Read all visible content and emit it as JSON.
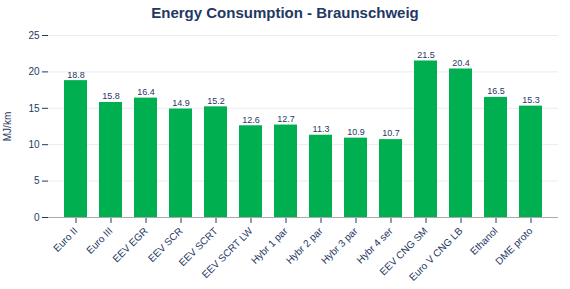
{
  "chart_data": {
    "type": "bar",
    "title": "Energy Consumption - Braunschweig",
    "ylabel": "MJ/km",
    "categories": [
      "Euro II",
      "Euro III",
      "EEV EGR",
      "EEV SCR",
      "EEV SCRT",
      "EEV SCRT LW",
      "Hybr 1 par",
      "Hybr 2 par",
      "Hybr 3 par",
      "Hybr 4 ser",
      "EEV CNG SM",
      "Euro V CNG LB",
      "Ethanol",
      "DME proto"
    ],
    "values": [
      18.8,
      15.8,
      16.4,
      14.9,
      15.2,
      12.6,
      12.7,
      11.3,
      10.9,
      10.7,
      21.5,
      20.4,
      16.5,
      15.3
    ],
    "color": "#00B050",
    "ylim": [
      0,
      25
    ],
    "yticks": [
      0,
      5,
      10,
      15,
      20,
      25
    ],
    "grid": true,
    "data_labels": true
  }
}
